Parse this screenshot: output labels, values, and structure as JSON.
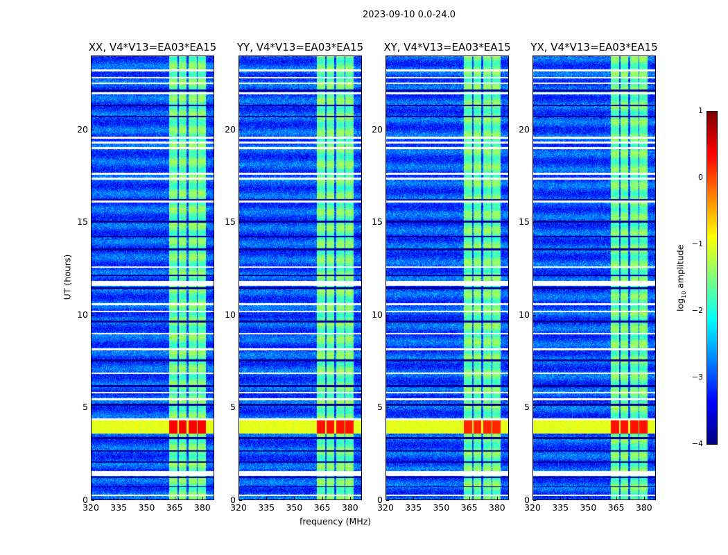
{
  "chart_data": {
    "type": "heatmap",
    "title": "2023-09-10 0.0-24.0",
    "xlabel": "frequency (MHz)",
    "ylabel": "UT (hours)",
    "xlim": [
      320,
      386.4
    ],
    "ylim": [
      0,
      24
    ],
    "xticks": [
      "320",
      "335",
      "350",
      "365",
      "380"
    ],
    "xtick_values": [
      320,
      335,
      350,
      365,
      380
    ],
    "yticks": [
      "0",
      "5",
      "10",
      "15",
      "20"
    ],
    "ytick_values": [
      0,
      5,
      10,
      15,
      20
    ],
    "panels": [
      {
        "title": "XX, V4*V13=EA03*EA15",
        "strong_rfi_level": 0.4
      },
      {
        "title": "YY, V4*V13=EA03*EA15",
        "strong_rfi_level": 0.3
      },
      {
        "title": "XY, V4*V13=EA03*EA15",
        "strong_rfi_level": 0.2
      },
      {
        "title": "YX, V4*V13=EA03*EA15",
        "strong_rfi_level": 0.3
      }
    ],
    "background_log_amplitude": -3.0,
    "rfi_subbands_mhz": [
      [
        362,
        366.5
      ],
      [
        367.2,
        371.4
      ],
      [
        372.5,
        377
      ],
      [
        377.7,
        382.2
      ]
    ],
    "rfi_log_amplitude": -1.6,
    "strong_rfi_hours": [
      3.6,
      4.3
    ],
    "flagged_hours": [
      [
        23.2,
        23.3
      ],
      [
        22.8,
        22.9
      ],
      [
        22.5,
        22.6
      ],
      [
        21.95,
        22.05
      ],
      [
        19.55,
        19.65
      ],
      [
        19.3,
        19.4
      ],
      [
        19.0,
        19.1
      ],
      [
        17.6,
        17.7
      ],
      [
        17.35,
        17.45
      ],
      [
        16.1,
        16.2
      ],
      [
        12.55,
        12.65
      ],
      [
        11.6,
        11.85
      ],
      [
        10.55,
        10.65
      ],
      [
        10.15,
        10.25
      ],
      [
        8.95,
        9.05
      ],
      [
        8.1,
        8.2
      ],
      [
        6.8,
        6.9
      ],
      [
        5.75,
        5.85
      ],
      [
        5.4,
        5.5
      ],
      [
        4.3,
        4.4
      ],
      [
        1.3,
        1.55
      ],
      [
        0.2,
        0.3
      ]
    ],
    "dark_hours": [
      [
        22.1,
        22.2
      ],
      [
        21.3,
        21.4
      ],
      [
        20.7,
        20.8
      ],
      [
        16.2,
        16.3
      ],
      [
        15.0,
        15.1
      ],
      [
        14.2,
        14.3
      ],
      [
        13.5,
        13.6
      ],
      [
        12.1,
        12.2
      ],
      [
        11.4,
        11.5
      ],
      [
        9.6,
        9.7
      ],
      [
        8.1,
        8.15
      ],
      [
        7.5,
        7.6
      ],
      [
        6.1,
        6.2
      ],
      [
        5.1,
        5.2
      ],
      [
        3.3,
        3.4
      ],
      [
        2.6,
        2.7
      ],
      [
        2.0,
        2.1
      ],
      [
        1.2,
        1.25
      ],
      [
        0.7,
        0.75
      ]
    ],
    "colorbar": {
      "label": "log10 amplitude",
      "label_main": "log",
      "label_sub": "10",
      "label_rest": " amplitude",
      "range": [
        -4,
        1
      ],
      "ticks": [
        "1",
        "0",
        "−1",
        "−2",
        "−3",
        "−4"
      ],
      "tick_values": [
        1,
        0,
        -1,
        -2,
        -3,
        -4
      ],
      "colormap": "jet"
    }
  }
}
